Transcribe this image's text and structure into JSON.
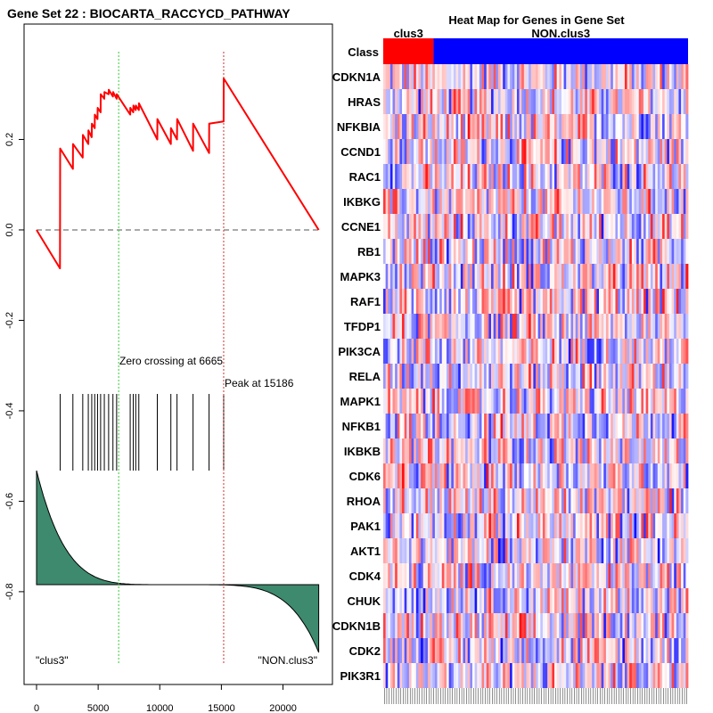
{
  "chart_data": [
    {
      "type": "line",
      "title": "Gene Set  22 : BIOCARTA_RACCYCD_PATHWAY",
      "xlabel": "",
      "ylabel": "",
      "xlim": [
        0,
        23000
      ],
      "ylim": [
        -0.95,
        0.4
      ],
      "x_ticks": [
        0,
        5000,
        10000,
        15000,
        20000
      ],
      "y_ticks": [
        0.2,
        0.0,
        -0.2,
        -0.4,
        -0.6,
        -0.8
      ],
      "y_tick_labels": [
        "0.2",
        "0.0",
        "-0.2",
        "-0.4",
        "-0.6",
        "-0.8"
      ],
      "x_tick_labels": [
        "0",
        "5000",
        "10000",
        "15000",
        "20000"
      ],
      "enrichment_color": "#ff0000",
      "enrichment_curve": [
        [
          0,
          0.0
        ],
        [
          1900,
          -0.085
        ],
        [
          1910,
          0.05
        ],
        [
          1920,
          0.18
        ],
        [
          2950,
          0.135
        ],
        [
          2960,
          0.19
        ],
        [
          3750,
          0.16
        ],
        [
          3760,
          0.21
        ],
        [
          4200,
          0.19
        ],
        [
          4210,
          0.22
        ],
        [
          4480,
          0.205
        ],
        [
          4490,
          0.235
        ],
        [
          4720,
          0.225
        ],
        [
          4730,
          0.255
        ],
        [
          4950,
          0.245
        ],
        [
          4960,
          0.27
        ],
        [
          5200,
          0.26
        ],
        [
          5210,
          0.3
        ],
        [
          5500,
          0.29
        ],
        [
          5510,
          0.305
        ],
        [
          5850,
          0.3
        ],
        [
          5860,
          0.31
        ],
        [
          6200,
          0.295
        ],
        [
          6210,
          0.305
        ],
        [
          6500,
          0.29
        ],
        [
          6510,
          0.3
        ],
        [
          7600,
          0.255
        ],
        [
          7610,
          0.27
        ],
        [
          7850,
          0.26
        ],
        [
          7860,
          0.275
        ],
        [
          8050,
          0.265
        ],
        [
          8060,
          0.275
        ],
        [
          8300,
          0.265
        ],
        [
          8310,
          0.28
        ],
        [
          9800,
          0.2
        ],
        [
          9810,
          0.245
        ],
        [
          10900,
          0.19
        ],
        [
          10910,
          0.225
        ],
        [
          11400,
          0.2
        ],
        [
          11410,
          0.245
        ],
        [
          12700,
          0.175
        ],
        [
          12710,
          0.235
        ],
        [
          14000,
          0.17
        ],
        [
          14010,
          0.235
        ],
        [
          15180,
          0.24
        ],
        [
          15186,
          0.335
        ],
        [
          22900,
          0.0
        ]
      ],
      "hit_positions": [
        1920,
        2950,
        3750,
        4200,
        4480,
        4720,
        4950,
        5200,
        5500,
        5850,
        6200,
        6500,
        7600,
        7850,
        8050,
        8300,
        9800,
        10900,
        11400,
        12700,
        14000,
        15186
      ],
      "zero_crossing": 6665,
      "peak": 15186,
      "annotations": [
        "Zero crossing at 6665",
        "Peak at 15186"
      ],
      "ranked_metric_label_left": "\"clus3\"",
      "ranked_metric_label_right": "\"NON.clus3\"",
      "ranked_metric_color": "#3d8a6e"
    },
    {
      "type": "heatmap",
      "title": "Heat Map for Genes in Gene Set",
      "class_row_label": "Class",
      "class_groups": [
        {
          "name": "clus3",
          "fraction": 0.165,
          "color": "#ff0000"
        },
        {
          "name": "NON.clus3",
          "fraction": 0.835,
          "color": "#0000ff"
        }
      ],
      "genes": [
        "CDKN1A",
        "HRAS",
        "NFKBIA",
        "CCND1",
        "RAC1",
        "IKBKG",
        "CCNE1",
        "RB1",
        "MAPK3",
        "RAF1",
        "TFDP1",
        "PIK3CA",
        "RELA",
        "MAPK1",
        "NFKB1",
        "IKBKB",
        "CDK6",
        "RHOA",
        "PAK1",
        "AKT1",
        "CDK4",
        "CHUK",
        "CDKN1B",
        "CDK2",
        "PIK3R1"
      ],
      "num_samples": 130,
      "colorscale": [
        "#0000ff",
        "#ffffff",
        "#ff0000"
      ],
      "value_range": [
        -1,
        1
      ]
    }
  ]
}
